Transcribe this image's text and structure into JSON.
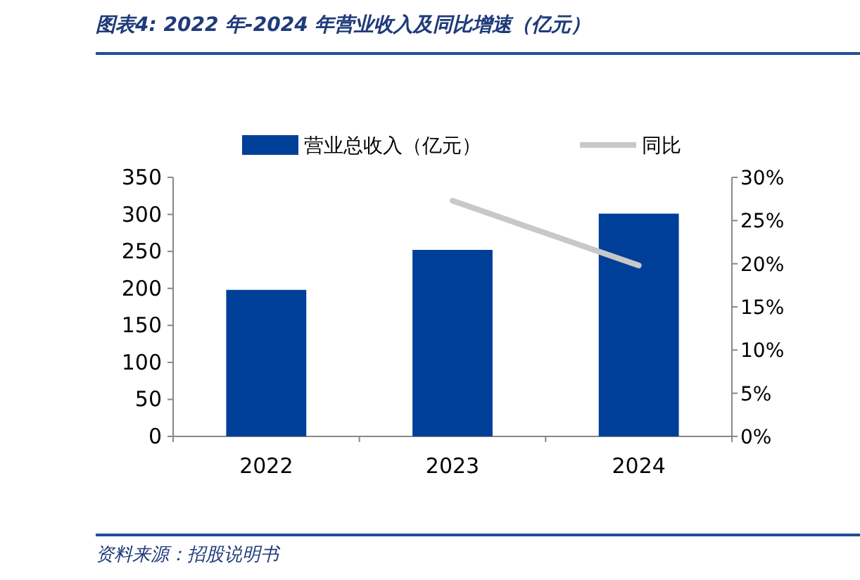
{
  "chart_data": {
    "type": "bar",
    "title": "图表4:  2022 年-2024 年营业收入及同比增速（亿元）",
    "annotations": [
      "资料来源：招股说明书"
    ],
    "categories": [
      "2022",
      "2023",
      "2024"
    ],
    "series": [
      {
        "name": "营业总收入（亿元）",
        "color": "#003f97",
        "values": [
          198,
          252,
          301
        ]
      },
      {
        "name": "同比",
        "type": "line",
        "axis": "y2",
        "color": "#c8c8c8",
        "values": [
          null,
          27.3,
          19.8
        ]
      }
    ],
    "ylim": [
      0,
      350
    ],
    "yticks": [
      0,
      50,
      100,
      150,
      200,
      250,
      300,
      350
    ],
    "y2lim": [
      0,
      30
    ],
    "y2ticks": [
      {
        "value": 0,
        "label": "0%"
      },
      {
        "value": 5,
        "label": "5%"
      },
      {
        "value": 10,
        "label": "10%"
      },
      {
        "value": 15,
        "label": "15%"
      },
      {
        "value": 20,
        "label": "20%"
      },
      {
        "value": 25,
        "label": "25%"
      },
      {
        "value": 30,
        "label": "30%"
      }
    ],
    "legend": "top",
    "grid": false
  }
}
